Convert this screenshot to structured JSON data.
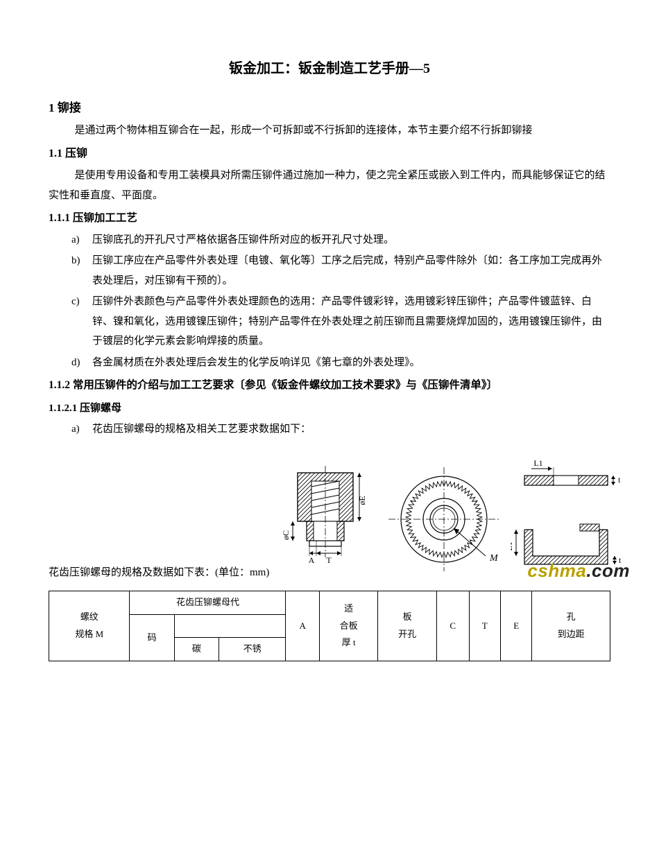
{
  "title": "钣金加工：钣金制造工艺手册—5",
  "sec1": {
    "num": "1",
    "title": "铆接"
  },
  "p1": "是通过两个物体相互铆合在一起，形成一个可拆卸或不行拆卸的连接体，本节主要介绍不行拆卸铆接",
  "sec11": {
    "num": "1.1",
    "title": "压铆"
  },
  "p2": "是使用专用设备和专用工装模具对所需压铆件通过施加一种力，使之完全紧压或嵌入到工件内，而具能够保证它的结实性和垂直度、平面度。",
  "sec111": {
    "num": "1.1.1",
    "title": "压铆加工工艺"
  },
  "list1": [
    {
      "k": "a)",
      "t": "压铆底孔的开孔尺寸严格依据各压铆件所对应的板开孔尺寸处理。"
    },
    {
      "k": "b)",
      "t": "压铆工序应在产品零件外表处理〔电镀、氧化等〕工序之后完成，特别产品零件除外〔如：各工序加工完成再外表处理后，对压铆有干预的〕。"
    },
    {
      "k": "c)",
      "t": "压铆件外表颜色与产品零件外表处理颜色的选用：产品零件镀彩锌，选用镀彩锌压铆件；产品零件镀蓝锌、白锌、镍和氧化，选用镀镍压铆件；特别产品零件在外表处理之前压铆而且需要烧焊加固的，选用镀镍压铆件，由于镀层的化学元素会影响焊接的质量。"
    },
    {
      "k": "d)",
      "t": "各金属材质在外表处理后会发生的化学反响详见《第七章的外表处理》。"
    }
  ],
  "sec112": {
    "num": "1.1.2",
    "title": "常用压铆件的介绍与加工工艺要求〔参见《钣金件螺纹加工技术要求》与《压铆件清单》〕"
  },
  "sec1121": {
    "num": "1.1.2.1",
    "title": "压铆螺母"
  },
  "list2": [
    {
      "k": "a)",
      "t": "花齿压铆螺母的规格及相关工艺要求数据如下："
    }
  ],
  "fig_caption": "花齿压铆螺母的规格及数据如下表：(单位：mm)",
  "watermark": {
    "a": "cshma",
    "b": ".com"
  },
  "diagram": {
    "stroke": "#000000",
    "hatch": "#000000",
    "labels": {
      "phiC": "øC",
      "phiE": "øE",
      "A": "A",
      "T": "T",
      "M": "M",
      "L1_top": "L1",
      "t_top": "t",
      "L1_side": "L1",
      "t_side": "t"
    }
  },
  "table": {
    "header": {
      "col1_l1": "螺纹",
      "col1_l2": "规格 M",
      "col2": "花齿压铆螺母代",
      "col2a": "码",
      "col2b": "碳",
      "col2c": "不锈",
      "col3a": "A",
      "col3b_l1": "适",
      "col3b_l2": "合板",
      "col3b_l3": "厚 t",
      "col4_l1": "板",
      "col4_l2": "开孔",
      "col5": "C",
      "col6": "T",
      "col7": "E",
      "col8_l1": "孔",
      "col8_l2": "到边距"
    }
  }
}
